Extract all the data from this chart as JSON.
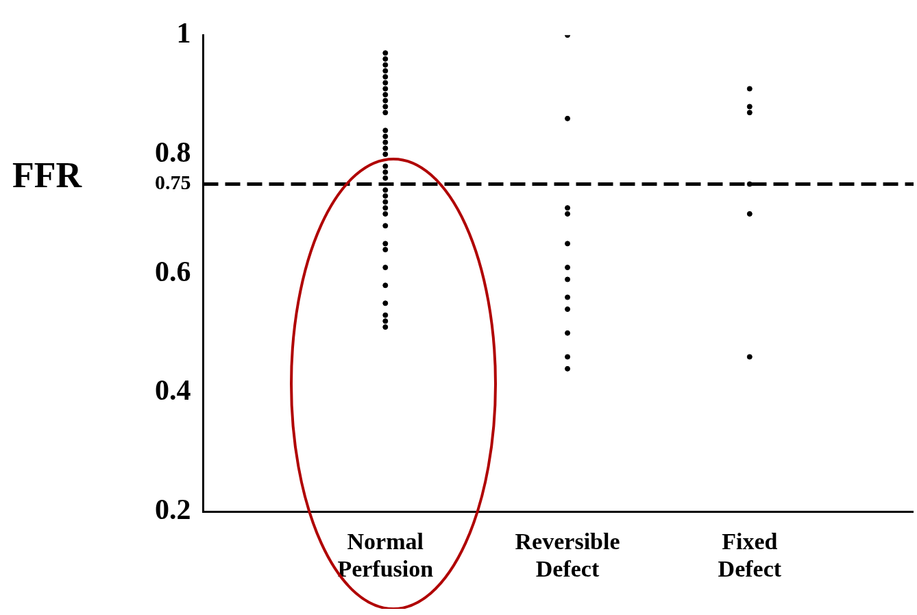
{
  "chart_data": {
    "type": "scatter",
    "ylabel": "FFR",
    "categories": [
      "Normal Perfusion",
      "Reversible Defect",
      "Fixed Defect"
    ],
    "series": [
      {
        "color": "#000000",
        "x": [
          "Normal Perfusion",
          "Normal Perfusion",
          "Normal Perfusion",
          "Normal Perfusion",
          "Normal Perfusion",
          "Normal Perfusion",
          "Normal Perfusion",
          "Normal Perfusion",
          "Normal Perfusion",
          "Normal Perfusion",
          "Normal Perfusion",
          "Normal Perfusion",
          "Normal Perfusion",
          "Normal Perfusion",
          "Normal Perfusion",
          "Normal Perfusion",
          "Normal Perfusion",
          "Normal Perfusion",
          "Normal Perfusion",
          "Normal Perfusion",
          "Normal Perfusion",
          "Normal Perfusion",
          "Normal Perfusion",
          "Normal Perfusion",
          "Normal Perfusion",
          "Normal Perfusion",
          "Normal Perfusion",
          "Normal Perfusion",
          "Normal Perfusion",
          "Normal Perfusion",
          "Normal Perfusion",
          "Normal Perfusion",
          "Normal Perfusion",
          "Normal Perfusion",
          "Normal Perfusion"
        ],
        "values": [
          0.97,
          0.96,
          0.95,
          0.94,
          0.93,
          0.92,
          0.91,
          0.9,
          0.89,
          0.88,
          0.87,
          0.84,
          0.83,
          0.82,
          0.81,
          0.8,
          null,
          0.78,
          0.77,
          0.76,
          null,
          0.74,
          0.73,
          0.72,
          0.71,
          0.7,
          0.68,
          0.65,
          0.64,
          0.61,
          0.58,
          0.55,
          0.53,
          0.52,
          0.51
        ]
      },
      {
        "color": "#000000",
        "x": [
          "Reversible Defect",
          "Reversible Defect",
          "Reversible Defect",
          "Reversible Defect",
          "Reversible Defect",
          "Reversible Defect",
          "Reversible Defect",
          "Reversible Defect",
          "Reversible Defect",
          "Reversible Defect",
          "Reversible Defect",
          "Reversible Defect"
        ],
        "values": [
          1.0,
          0.86,
          0.71,
          0.7,
          0.65,
          0.61,
          0.59,
          0.56,
          0.54,
          0.5,
          0.46,
          0.44
        ]
      },
      {
        "color": "#000000",
        "x": [
          "Fixed Defect",
          "Fixed Defect",
          "Fixed Defect",
          "Fixed Defect",
          "Fixed Defect",
          "Fixed Defect"
        ],
        "values": [
          0.91,
          0.88,
          0.87,
          0.75,
          0.7,
          0.46
        ]
      }
    ],
    "ylim": [
      0.2,
      1
    ],
    "yticks": [
      0.2,
      0.4,
      0.6,
      0.8,
      {
        "value": 0.75,
        "label": "0.75"
      },
      1
    ],
    "ref_lines": [
      {
        "axis": "y",
        "value": 0.75,
        "color": "#000000",
        "line_style": "dashed"
      }
    ],
    "grid": false,
    "legend": false,
    "marker": "circle"
  }
}
